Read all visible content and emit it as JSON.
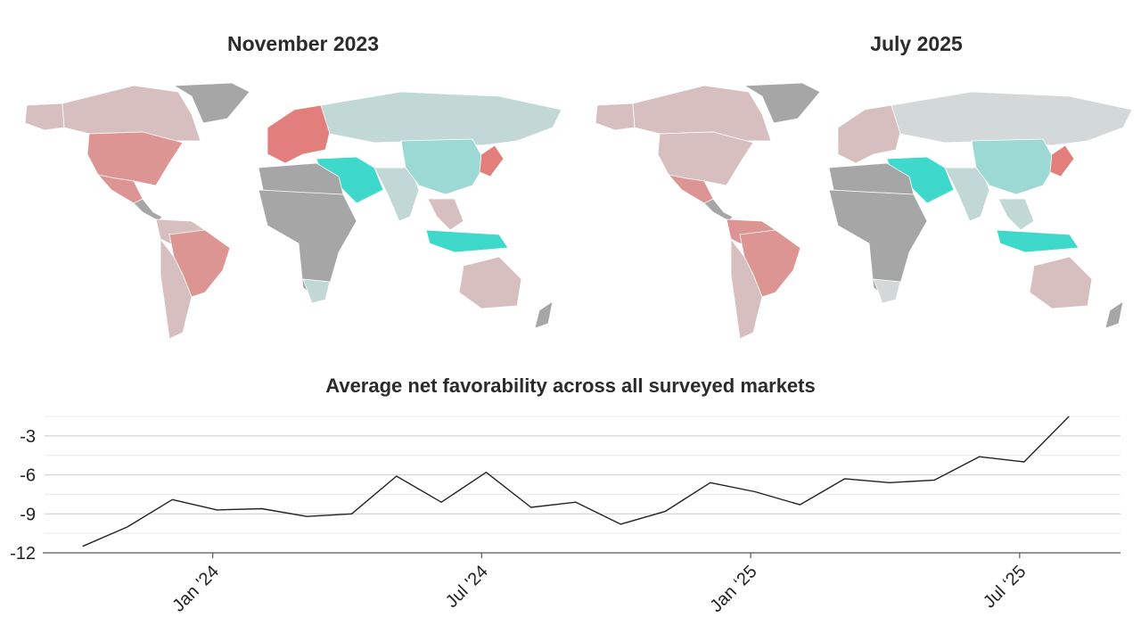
{
  "maps": {
    "left_title": "November 2023",
    "right_title": "July 2025",
    "colors": {
      "no_data": "#a6a6a6",
      "strong_negative": "#dd9593",
      "negative": "#e27f7c",
      "mild_negative": "#d8bfbf",
      "neutral": "#d3d9d8",
      "mild_positive": "#c2d8d6",
      "positive": "#9dd9d4",
      "strong_positive": "#3fd9cc"
    }
  },
  "chart_title": "Average net favorability across all surveyed markets",
  "chart_data": {
    "type": "line",
    "title": "Average net favorability across all surveyed markets",
    "xlabel": "",
    "ylabel": "",
    "ylim": [
      -12,
      -1.5
    ],
    "yticks": [
      -3,
      -6,
      -9,
      -12
    ],
    "ytick_labels": [
      "-3",
      "-6",
      "-9",
      "-12"
    ],
    "xtick_labels": [
      "Jan '24",
      "Jul '24",
      "Jan ‘25",
      "Jul ‘25"
    ],
    "xtick_dates": [
      "2024-01",
      "2024-07",
      "2025-01",
      "2025-07"
    ],
    "grid": true,
    "line_color": "#222222",
    "series": [
      {
        "dates": [
          "2023-10",
          "2023-11",
          "2023-12",
          "2024-01",
          "2024-02",
          "2024-03",
          "2024-04",
          "2024-05",
          "2024-06",
          "2024-07",
          "2024-08",
          "2024-09",
          "2024-10",
          "2024-11",
          "2024-12",
          "2025-01",
          "2025-02",
          "2025-03",
          "2025-04",
          "2025-05",
          "2025-06",
          "2025-07",
          "2025-08"
        ],
        "values": [
          -11.5,
          -10.0,
          -7.9,
          -8.7,
          -8.6,
          -9.2,
          -9.0,
          -6.1,
          -8.1,
          -5.8,
          -8.5,
          -8.1,
          -9.8,
          -8.8,
          -6.6,
          -7.3,
          -8.3,
          -6.3,
          -6.6,
          -6.4,
          -4.6,
          -5.0,
          -1.5
        ]
      }
    ]
  }
}
